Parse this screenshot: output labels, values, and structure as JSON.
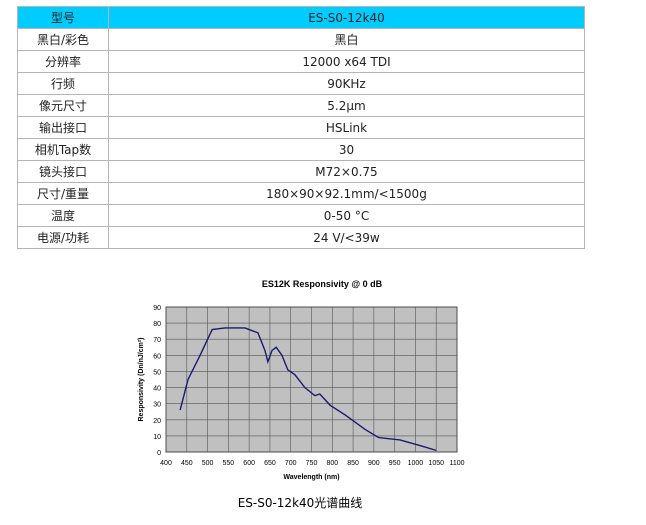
{
  "table": {
    "header": [
      "型号",
      "ES-S0-12k40"
    ],
    "rows": [
      [
        "黑白/彩色",
        "黑白"
      ],
      [
        "分辨率",
        "12000 x64 TDI"
      ],
      [
        "行频",
        "90KHz"
      ],
      [
        "像元尺寸",
        "5.2μm"
      ],
      [
        "输出接口",
        "HSLink"
      ],
      [
        "相机Tap数",
        "30"
      ],
      [
        "镜头接口",
        "M72×0.75"
      ],
      [
        "尺寸/重量",
        "180×90×92.1mm/<1500g"
      ],
      [
        "温度",
        "0-50 °C"
      ],
      [
        "电源/功耗",
        "24 V/<39w"
      ]
    ]
  },
  "chart_data": {
    "type": "line",
    "title": "ES12K Responsivity @ 0 dB",
    "x_label": "Wavelength (nm)",
    "y_label": "Responsivity (Dn/nJ/cm²)",
    "x": [
      434,
      453,
      482,
      511,
      542,
      590,
      621,
      638,
      645,
      655,
      665,
      679,
      693,
      710,
      734,
      758,
      770,
      795,
      831,
      879,
      911,
      963,
      1011,
      1050
    ],
    "series": [
      {
        "name": "ES12K",
        "color": "#1a1a6e",
        "values": [
          26,
          45,
          60,
          76,
          77,
          77,
          74,
          63,
          56,
          63,
          65,
          60,
          51,
          48,
          40,
          35,
          36,
          29,
          23,
          14,
          9,
          7.5,
          4,
          1
        ]
      }
    ],
    "xlim": [
      400,
      1100
    ],
    "ylim": [
      0,
      90
    ],
    "xticks": [
      400,
      450,
      500,
      550,
      600,
      650,
      700,
      750,
      800,
      850,
      900,
      950,
      1000,
      1050,
      1100
    ],
    "yticks": [
      0,
      10,
      20,
      30,
      40,
      50,
      60,
      70,
      80,
      90
    ],
    "grid": true
  },
  "caption": "ES-S0-12k40光谱曲线"
}
